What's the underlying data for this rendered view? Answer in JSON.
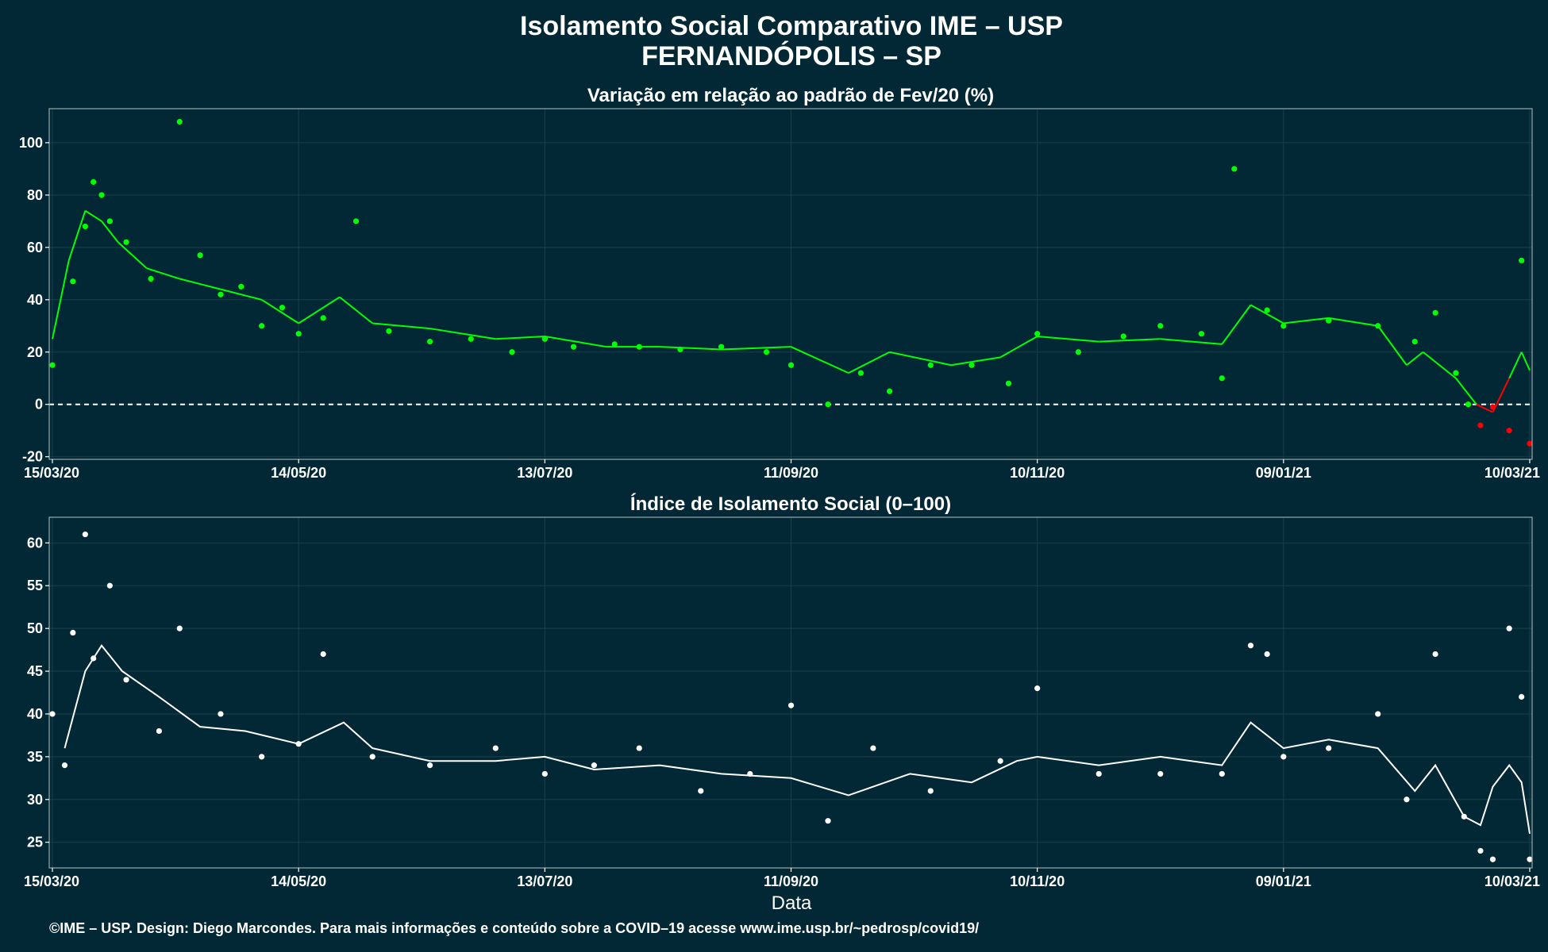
{
  "title": "Isolamento Social Comparativo IME – USP",
  "subtitle": "FERNANDÓPOLIS – SP",
  "footer": "©IME – USP. Design: Diego Marcondes. Para mais informações e conteúdo sobre a COVID–19 acesse www.ime.usp.br/~pedrosp/covid19/",
  "xlabel": "Data",
  "colors": {
    "background": "#022835",
    "positive": "#00ff00",
    "negative": "#ff0000",
    "index": "#ffffff",
    "grid": "#18404a"
  },
  "x_ticks": [
    "15/03/20",
    "14/05/20",
    "13/07/20",
    "11/09/20",
    "10/11/20",
    "09/01/21",
    "10/03/21"
  ],
  "chart_data": [
    {
      "type": "scatter",
      "title": "Variação em relação ao padrão de Fev/20 (%)",
      "xlabel": "Data",
      "ylabel": "",
      "ylim": [
        -21,
        113
      ],
      "yticks": [
        -20,
        0,
        20,
        40,
        60,
        80,
        100
      ],
      "x_range": [
        "15/03/20",
        "10/03/21"
      ],
      "reference_line": 0,
      "grid": true,
      "series": [
        {
          "style": "points",
          "x": [
            "15/03/20",
            "20/03/20",
            "23/03/20",
            "25/03/20",
            "27/03/20",
            "29/03/20",
            "02/04/20",
            "08/04/20",
            "15/04/20",
            "20/04/20",
            "25/04/20",
            "30/04/20",
            "05/05/20",
            "10/05/20",
            "14/05/20",
            "20/05/20",
            "28/05/20",
            "05/06/20",
            "15/06/20",
            "25/06/20",
            "05/07/20",
            "13/07/20",
            "20/07/20",
            "30/07/20",
            "05/08/20",
            "15/08/20",
            "25/08/20",
            "05/09/20",
            "11/09/20",
            "20/09/20",
            "28/09/20",
            "05/10/20",
            "15/10/20",
            "25/10/20",
            "03/11/20",
            "10/11/20",
            "20/11/20",
            "01/12/20",
            "10/12/20",
            "20/12/20",
            "25/12/20",
            "28/12/20",
            "05/01/21",
            "09/01/21",
            "20/01/21",
            "01/02/21",
            "10/02/21",
            "15/02/21",
            "20/02/21",
            "23/02/21",
            "26/02/21",
            "01/03/21",
            "05/03/21",
            "08/03/21",
            "10/03/21"
          ],
          "y": [
            15,
            47,
            68,
            85,
            80,
            70,
            62,
            48,
            108,
            57,
            42,
            45,
            30,
            37,
            27,
            33,
            70,
            28,
            24,
            25,
            20,
            25,
            22,
            23,
            22,
            21,
            22,
            20,
            15,
            0,
            12,
            5,
            15,
            15,
            8,
            27,
            20,
            26,
            30,
            27,
            10,
            90,
            36,
            30,
            32,
            30,
            24,
            35,
            12,
            0,
            -8,
            -1,
            -10,
            55,
            -15
          ]
        },
        {
          "style": "line",
          "x": [
            "15/03/20",
            "19/03/20",
            "23/03/20",
            "27/03/20",
            "31/03/20",
            "07/04/20",
            "15/04/20",
            "25/04/20",
            "05/05/20",
            "14/05/20",
            "24/05/20",
            "01/06/20",
            "15/06/20",
            "01/07/20",
            "13/07/20",
            "28/07/20",
            "10/08/20",
            "25/08/20",
            "11/09/20",
            "25/09/20",
            "05/10/20",
            "20/10/20",
            "01/11/20",
            "10/11/20",
            "25/11/20",
            "10/12/20",
            "25/12/20",
            "01/01/21",
            "09/01/21",
            "20/01/21",
            "01/02/21",
            "08/02/21",
            "12/02/21",
            "20/02/21",
            "25/02/21",
            "01/03/21",
            "05/03/21",
            "08/03/21",
            "10/03/21"
          ],
          "y": [
            25,
            55,
            74,
            70,
            62,
            52,
            48,
            44,
            40,
            31,
            41,
            31,
            29,
            25,
            26,
            22,
            22,
            21,
            22,
            12,
            20,
            15,
            18,
            26,
            24,
            25,
            23,
            38,
            31,
            33,
            30,
            15,
            20,
            10,
            0,
            -3,
            10,
            20,
            13
          ]
        }
      ]
    },
    {
      "type": "scatter",
      "title": "Índice de Isolamento Social (0–100)",
      "xlabel": "Data",
      "ylabel": "",
      "ylim": [
        22,
        63
      ],
      "yticks": [
        25,
        30,
        35,
        40,
        45,
        50,
        55,
        60
      ],
      "x_range": [
        "15/03/20",
        "10/03/21"
      ],
      "grid": true,
      "series": [
        {
          "style": "points",
          "x": [
            "15/03/20",
            "18/03/20",
            "20/03/20",
            "23/03/20",
            "25/03/20",
            "29/03/20",
            "02/04/20",
            "10/04/20",
            "15/04/20",
            "25/04/20",
            "05/05/20",
            "14/05/20",
            "20/05/20",
            "01/06/20",
            "15/06/20",
            "01/07/20",
            "13/07/20",
            "25/07/20",
            "05/08/20",
            "20/08/20",
            "01/09/20",
            "11/09/20",
            "20/09/20",
            "01/10/20",
            "15/10/20",
            "01/11/20",
            "10/11/20",
            "25/11/20",
            "10/12/20",
            "25/12/20",
            "01/01/21",
            "05/01/21",
            "09/01/21",
            "20/01/21",
            "01/02/21",
            "08/02/21",
            "15/02/21",
            "22/02/21",
            "26/02/21",
            "01/03/21",
            "05/03/21",
            "08/03/21",
            "10/03/21"
          ],
          "y": [
            40,
            34,
            49.5,
            61,
            46.5,
            55,
            44,
            38,
            50,
            40,
            35,
            36.5,
            47,
            35,
            34,
            36,
            33,
            34,
            36,
            31,
            33,
            41,
            27.5,
            36,
            31,
            34.5,
            43,
            33,
            33,
            33,
            48,
            47,
            35,
            36,
            40,
            30,
            47,
            28,
            24,
            23,
            50,
            42,
            23
          ]
        },
        {
          "style": "line",
          "x": [
            "18/03/20",
            "23/03/20",
            "27/03/20",
            "01/04/20",
            "10/04/20",
            "20/04/20",
            "01/05/20",
            "14/05/20",
            "25/05/20",
            "01/06/20",
            "15/06/20",
            "01/07/20",
            "13/07/20",
            "25/07/20",
            "10/08/20",
            "25/08/20",
            "11/09/20",
            "25/09/20",
            "10/10/20",
            "25/10/20",
            "05/11/20",
            "10/11/20",
            "25/11/20",
            "10/12/20",
            "25/12/20",
            "01/01/21",
            "09/01/21",
            "20/01/21",
            "01/02/21",
            "10/02/21",
            "15/02/21",
            "22/02/21",
            "26/02/21",
            "01/03/21",
            "05/03/21",
            "08/03/21",
            "10/03/21"
          ],
          "y": [
            36,
            45,
            48,
            45,
            42,
            38.5,
            38,
            36.5,
            39,
            36,
            34.5,
            34.5,
            35,
            33.5,
            34,
            33,
            32.5,
            30.5,
            33,
            32,
            34.5,
            35,
            34,
            35,
            34,
            39,
            36,
            37,
            36,
            31,
            34,
            28,
            27,
            31.5,
            34,
            32,
            26
          ]
        }
      ]
    }
  ]
}
